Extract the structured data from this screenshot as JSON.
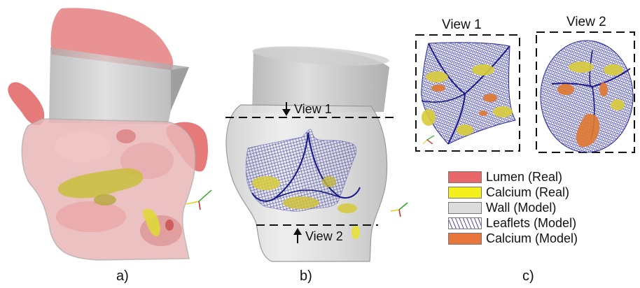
{
  "panels": {
    "a": {
      "label": "a)"
    },
    "b": {
      "label": "b)",
      "cut_top": "View 1",
      "cut_bottom": "View 2"
    },
    "c": {
      "label": "c)",
      "view1_title": "View 1",
      "view2_title": "View 2"
    }
  },
  "legend": {
    "items": [
      {
        "label": "Lumen (Real)",
        "color": "#e8686a"
      },
      {
        "label": "Calcium (Real)",
        "color": "#f2ef1a"
      },
      {
        "label": "Wall (Model)",
        "color": "#dcdcdc"
      },
      {
        "label": "Leaflets (Model)",
        "color": "#ffffff",
        "pattern": "hatch"
      },
      {
        "label": "Calcium (Model)",
        "color": "#e8763a"
      }
    ]
  }
}
